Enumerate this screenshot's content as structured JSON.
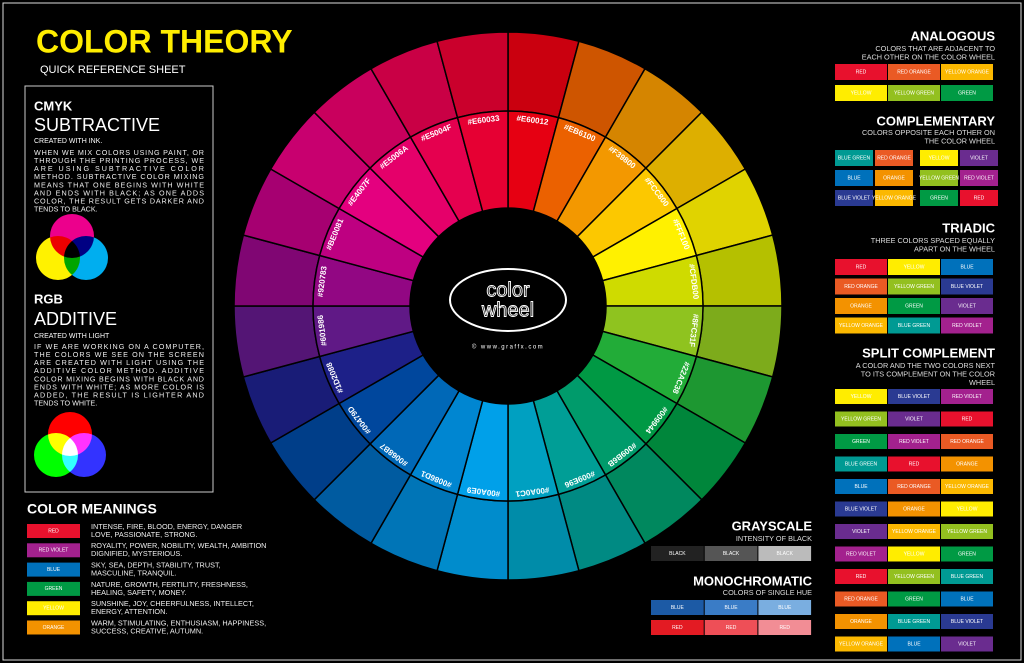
{
  "header": {
    "title": "COLOR THEORY",
    "subtitle": "QUICK REFERENCE SHEET"
  },
  "cmyk": {
    "label": "CMYK",
    "title": "SUBTRACTIVE",
    "note": "CREATED WITH INK.",
    "lines": [
      "WHEN WE MIX COLORS USING PAINT, OR",
      "THROUGH THE PRINTING PROCESS, WE",
      "ARE USING SUBTRACTIVE COLOR",
      "METHOD. SUBTRACTIVE COLOR MIXING",
      "MEANS THAT ONE BEGINS WITH WHITE",
      "AND ENDS WITH BLACK; AS ONE ADDS",
      "COLOR, THE RESULT GETS DARKER AND",
      "TENDS TO BLACK."
    ]
  },
  "rgb": {
    "label": "RGB",
    "title": "ADDITIVE",
    "note": "CREATED WITH LIGHT",
    "lines": [
      "IF WE ARE WORKING ON A COMPUTER,",
      "THE COLORS WE SEE ON THE SCREEN",
      "ARE CREATED WITH LIGHT USING THE",
      "ADDITIVE COLOR METHOD. ADDITIVE",
      "COLOR MIXING BEGINS WITH BLACK AND",
      "ENDS WITH WHITE; AS MORE COLOR IS",
      "ADDED, THE RESULT IS LIGHTER AND",
      "TENDS TO WHITE."
    ]
  },
  "meanings": {
    "title": "COLOR MEANINGS",
    "items": [
      {
        "label": "RED",
        "color": "#e8112d",
        "lines": [
          "INTENSE, FIRE, BLOOD, ENERGY, DANGER",
          "LOVE, PASSIONATE, STRONG."
        ]
      },
      {
        "label": "RED VIOLET",
        "color": "#a3218e",
        "lines": [
          "ROYALITY, POWER, NOBILITY, WEALTH, AMBITION",
          "DIGNIFIED, MYSTERIOUS."
        ]
      },
      {
        "label": "BLUE",
        "color": "#0071bb",
        "lines": [
          "SKY, SEA, DEPTH, STABILITY, TRUST,",
          "MASCULINE, TRANQUIL."
        ]
      },
      {
        "label": "GREEN",
        "color": "#009a44",
        "lines": [
          "NATURE, GROWTH, FERTILITY, FRESHNESS,",
          "HEALING, SAFETY, MONEY."
        ]
      },
      {
        "label": "YELLOW",
        "color": "#ffed00",
        "lines": [
          "SUNSHINE, JOY, CHEERFULNESS, INTELLECT,",
          "ENERGY, ATTENTION."
        ]
      },
      {
        "label": "ORANGE",
        "color": "#f39200",
        "lines": [
          "WARM, STIMULATING, ENTHUSIASM, HAPPINESS,",
          "SUCCESS, CREATIVE, AUTUMN."
        ]
      }
    ]
  },
  "wheel": {
    "logo": [
      "color",
      "wheel"
    ],
    "credit": "© www.graffx.com",
    "segments": [
      "#E60012",
      "#EB6100",
      "#F39800",
      "#FCC800",
      "#FFF100",
      "#CFDB00",
      "#8FC31F",
      "#22AC38",
      "#009944",
      "#009B6B",
      "#009E96",
      "#00A0C1",
      "#00A0E9",
      "#0086D1",
      "#0068B7",
      "#00479D",
      "#1D2088",
      "#601986",
      "#920783",
      "#BE0081",
      "#E4007F",
      "#E5006A",
      "#E5004F",
      "#E60033"
    ]
  },
  "schemes": [
    {
      "title": "ANALOGOUS",
      "description": [
        "COLORS THAT ARE ADJACENT TO",
        "EACH OTHER ON THE COLOR WHEEL"
      ],
      "rows": [
        [
          {
            "label": "RED",
            "color": "#e8112d"
          },
          {
            "label": "RED ORANGE",
            "color": "#ea5a24"
          },
          {
            "label": "YELLOW ORANGE",
            "color": "#fbb800"
          }
        ],
        [
          {
            "label": "YELLOW",
            "color": "#ffed00"
          },
          {
            "label": "YELLOW GREEN",
            "color": "#93c01f"
          },
          {
            "label": "GREEN",
            "color": "#009a44"
          }
        ]
      ]
    },
    {
      "title": "COMPLEMENTARY",
      "description": [
        "COLORS OPPOSITE EACH OTHER ON",
        "THE COLOR WHEEL"
      ],
      "rows": [
        [
          {
            "label": "BLUE GREEN",
            "color": "#009a93"
          },
          {
            "label": "RED ORANGE",
            "color": "#ea5a24"
          },
          {
            "label": "YELLOW",
            "color": "#ffed00"
          },
          {
            "label": "VIOLET",
            "color": "#6a2c8f"
          }
        ],
        [
          {
            "label": "BLUE",
            "color": "#0071bb"
          },
          {
            "label": "ORANGE",
            "color": "#f39200"
          },
          {
            "label": "YELLOW GREEN",
            "color": "#93c01f"
          },
          {
            "label": "RED VIOLET",
            "color": "#a3218e"
          }
        ],
        [
          {
            "label": "BLUE VIOLET",
            "color": "#2a3a92"
          },
          {
            "label": "YELLOW ORANGE",
            "color": "#fbb800"
          },
          {
            "label": "GREEN",
            "color": "#009a44"
          },
          {
            "label": "RED",
            "color": "#e8112d"
          }
        ]
      ]
    },
    {
      "title": "TRIADIC",
      "description": [
        "THREE COLORS SPACED EQUALLY",
        "APART ON THE WHEEL"
      ],
      "rows": [
        [
          {
            "label": "RED",
            "color": "#e8112d"
          },
          {
            "label": "YELLOW",
            "color": "#ffed00"
          },
          {
            "label": "BLUE",
            "color": "#0071bb"
          }
        ],
        [
          {
            "label": "RED ORANGE",
            "color": "#ea5a24"
          },
          {
            "label": "YELLOW GREEN",
            "color": "#93c01f"
          },
          {
            "label": "BLUE VIOLET",
            "color": "#2a3a92"
          }
        ],
        [
          {
            "label": "ORANGE",
            "color": "#f39200"
          },
          {
            "label": "GREEN",
            "color": "#009a44"
          },
          {
            "label": "VIOLET",
            "color": "#6a2c8f"
          }
        ],
        [
          {
            "label": "YELLOW ORANGE",
            "color": "#fbb800"
          },
          {
            "label": "BLUE GREEN",
            "color": "#009a93"
          },
          {
            "label": "RED VIOLET",
            "color": "#a3218e"
          }
        ]
      ]
    },
    {
      "title": "SPLIT COMPLEMENT",
      "description": [
        "A COLOR AND THE TWO COLORS NEXT",
        "TO ITS COMPLEMENT ON THE COLOR",
        "WHEEL"
      ],
      "rows": [
        [
          {
            "label": "YELLOW",
            "color": "#ffed00"
          },
          {
            "label": "BLUE VIOLET",
            "color": "#2a3a92"
          },
          {
            "label": "RED VIOLET",
            "color": "#a3218e"
          }
        ],
        [
          {
            "label": "YELLOW GREEN",
            "color": "#93c01f"
          },
          {
            "label": "VIOLET",
            "color": "#6a2c8f"
          },
          {
            "label": "RED",
            "color": "#e8112d"
          }
        ],
        [
          {
            "label": "GREEN",
            "color": "#009a44"
          },
          {
            "label": "RED VIOLET",
            "color": "#a3218e"
          },
          {
            "label": "RED ORANGE",
            "color": "#ea5a24"
          }
        ],
        [
          {
            "label": "BLUE GREEN",
            "color": "#009a93"
          },
          {
            "label": "RED",
            "color": "#e8112d"
          },
          {
            "label": "ORANGE",
            "color": "#f39200"
          }
        ],
        [
          {
            "label": "BLUE",
            "color": "#0071bb"
          },
          {
            "label": "RED ORANGE",
            "color": "#ea5a24"
          },
          {
            "label": "YELLOW ORANGE",
            "color": "#fbb800"
          }
        ],
        [
          {
            "label": "BLUE VIOLET",
            "color": "#2a3a92"
          },
          {
            "label": "ORANGE",
            "color": "#f39200"
          },
          {
            "label": "YELLOW",
            "color": "#ffed00"
          }
        ],
        [
          {
            "label": "VIOLET",
            "color": "#6a2c8f"
          },
          {
            "label": "YELLOW ORANGE",
            "color": "#fbb800"
          },
          {
            "label": "YELLOW GREEN",
            "color": "#93c01f"
          }
        ],
        [
          {
            "label": "RED VIOLET",
            "color": "#a3218e"
          },
          {
            "label": "YELLOW",
            "color": "#ffed00"
          },
          {
            "label": "GREEN",
            "color": "#009a44"
          }
        ],
        [
          {
            "label": "RED",
            "color": "#e8112d"
          },
          {
            "label": "YELLOW GREEN",
            "color": "#93c01f"
          },
          {
            "label": "BLUE GREEN",
            "color": "#009a93"
          }
        ],
        [
          {
            "label": "RED ORANGE",
            "color": "#ea5a24"
          },
          {
            "label": "GREEN",
            "color": "#009a44"
          },
          {
            "label": "BLUE",
            "color": "#0071bb"
          }
        ],
        [
          {
            "label": "ORANGE",
            "color": "#f39200"
          },
          {
            "label": "BLUE GREEN",
            "color": "#009a93"
          },
          {
            "label": "BLUE VIOLET",
            "color": "#2a3a92"
          }
        ],
        [
          {
            "label": "YELLOW ORANGE",
            "color": "#fbb800"
          },
          {
            "label": "BLUE",
            "color": "#0071bb"
          },
          {
            "label": "VIOLET",
            "color": "#6a2c8f"
          }
        ]
      ]
    },
    {
      "title": "GRAYSCALE",
      "description": [
        "INTENSITY OF BLACK"
      ],
      "rows": [
        [
          {
            "label": "BLACK",
            "color": "#222222"
          },
          {
            "label": "BLACK",
            "color": "#555555"
          },
          {
            "label": "BLACK",
            "color": "#bbbbbb"
          }
        ]
      ]
    },
    {
      "title": "MONOCHROMATIC",
      "description": [
        "COLORS OF SINGLE HUE"
      ],
      "rows": [
        [
          {
            "label": "BLUE",
            "color": "#1c5aa5"
          },
          {
            "label": "BLUE",
            "color": "#3a7cc6"
          },
          {
            "label": "BLUE",
            "color": "#7aaee0"
          }
        ],
        [
          {
            "label": "RED",
            "color": "#e31b23"
          },
          {
            "label": "RED",
            "color": "#ee4f57"
          },
          {
            "label": "RED",
            "color": "#f28d95"
          }
        ]
      ]
    }
  ]
}
